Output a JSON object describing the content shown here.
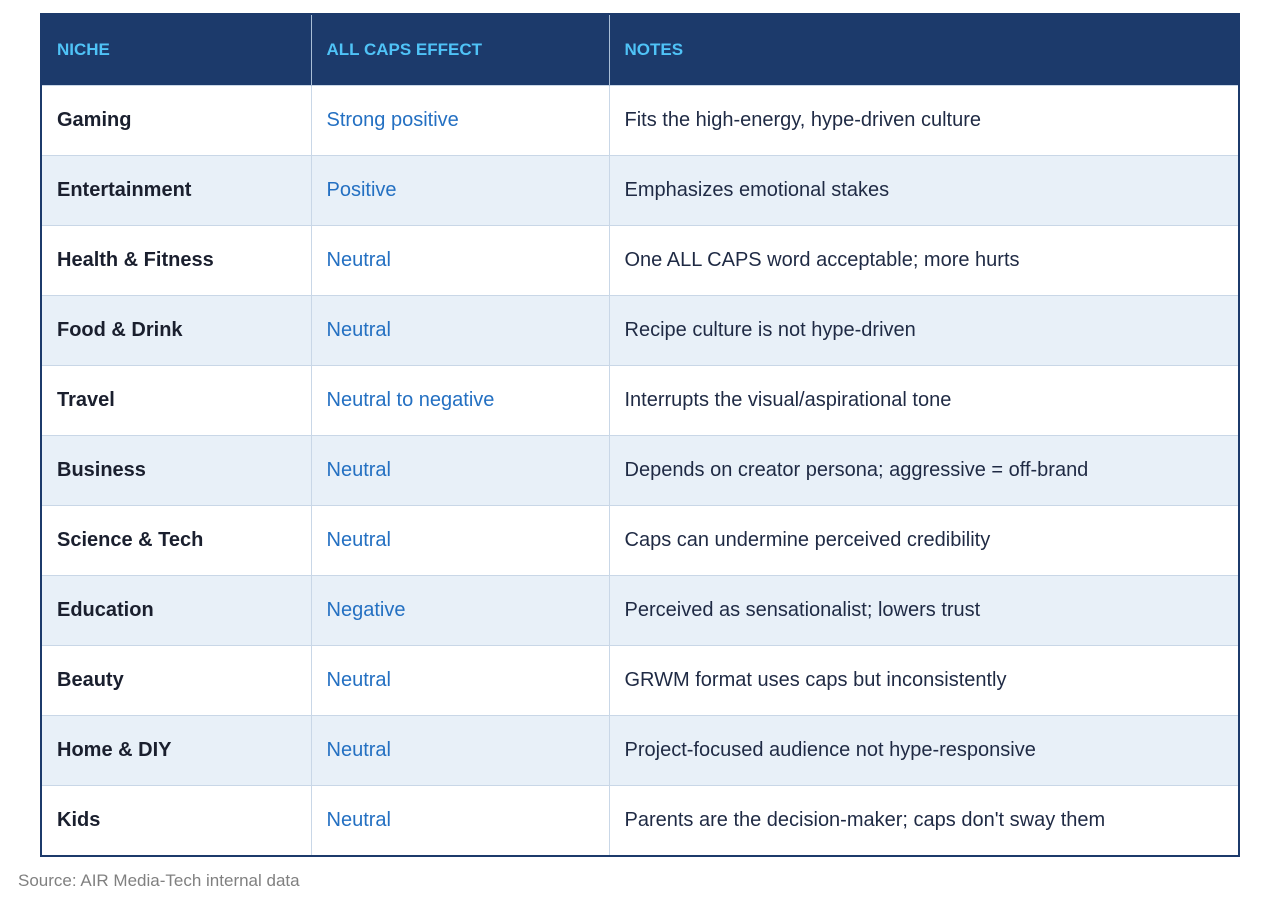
{
  "table": {
    "headers": [
      "NICHE",
      "ALL CAPS EFFECT",
      "NOTES"
    ],
    "rows": [
      {
        "niche": "Gaming",
        "effect": "Strong positive",
        "notes": "Fits the high-energy, hype-driven culture"
      },
      {
        "niche": "Entertainment",
        "effect": "Positive",
        "notes": "Emphasizes emotional stakes"
      },
      {
        "niche": "Health & Fitness",
        "effect": "Neutral",
        "notes": "One ALL CAPS word acceptable; more hurts"
      },
      {
        "niche": "Food & Drink",
        "effect": "Neutral",
        "notes": "Recipe culture is not hype-driven"
      },
      {
        "niche": "Travel",
        "effect": "Neutral to negative",
        "notes": "Interrupts the visual/aspirational tone"
      },
      {
        "niche": "Business",
        "effect": "Neutral",
        "notes": "Depends on creator persona; aggressive = off-brand"
      },
      {
        "niche": "Science & Tech",
        "effect": "Neutral",
        "notes": "Caps can undermine perceived credibility"
      },
      {
        "niche": "Education",
        "effect": "Negative",
        "notes": "Perceived as sensationalist; lowers trust"
      },
      {
        "niche": "Beauty",
        "effect": "Neutral",
        "notes": "GRWM format uses caps but inconsistently"
      },
      {
        "niche": "Home & DIY",
        "effect": "Neutral",
        "notes": "Project-focused audience not hype-responsive"
      },
      {
        "niche": "Kids",
        "effect": "Neutral",
        "notes": "Parents are the decision-maker; caps don't sway them"
      }
    ]
  },
  "source": "Source: AIR Media-Tech internal data",
  "colors": {
    "header_bg": "#1c3a6b",
    "header_text": "#4fc3f7",
    "effect_text": "#2470c2",
    "alt_row_bg": "#e8f0f8"
  }
}
